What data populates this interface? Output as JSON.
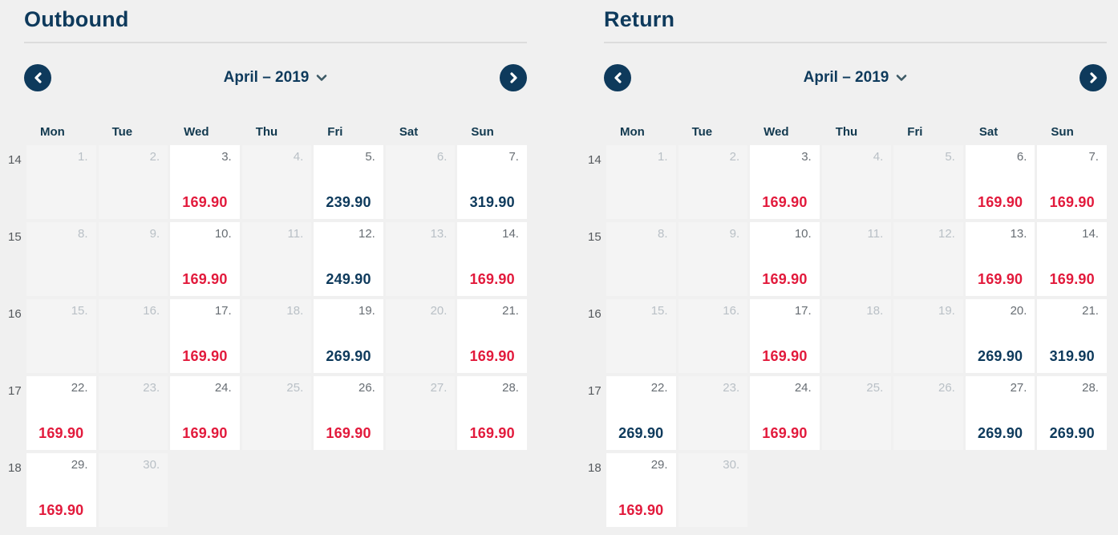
{
  "colors": {
    "page_background": "#f0f0f0",
    "empty_cell_background": "#f4f4f4",
    "priced_cell_background": "#ffffff",
    "navy": "#0e3a5c",
    "price_low_red": "#e21a3c",
    "price_regular_navy": "#0e3a5c"
  },
  "calendars": [
    {
      "id": "outbound",
      "title": "Outbound",
      "month_label": "April – 2019",
      "weekdays": [
        "Mon",
        "Tue",
        "Wed",
        "Thu",
        "Fri",
        "Sat",
        "Sun"
      ],
      "weeks": [
        {
          "week_number": "14",
          "days": [
            {
              "day": "1."
            },
            {
              "day": "2."
            },
            {
              "day": "3.",
              "price": "169.90",
              "tone": "low"
            },
            {
              "day": "4."
            },
            {
              "day": "5.",
              "price": "239.90",
              "tone": "regular"
            },
            {
              "day": "6."
            },
            {
              "day": "7.",
              "price": "319.90",
              "tone": "regular"
            }
          ]
        },
        {
          "week_number": "15",
          "days": [
            {
              "day": "8."
            },
            {
              "day": "9."
            },
            {
              "day": "10.",
              "price": "169.90",
              "tone": "low"
            },
            {
              "day": "11."
            },
            {
              "day": "12.",
              "price": "249.90",
              "tone": "regular"
            },
            {
              "day": "13."
            },
            {
              "day": "14.",
              "price": "169.90",
              "tone": "low"
            }
          ]
        },
        {
          "week_number": "16",
          "days": [
            {
              "day": "15."
            },
            {
              "day": "16."
            },
            {
              "day": "17.",
              "price": "169.90",
              "tone": "low"
            },
            {
              "day": "18."
            },
            {
              "day": "19.",
              "price": "269.90",
              "tone": "regular"
            },
            {
              "day": "20."
            },
            {
              "day": "21.",
              "price": "169.90",
              "tone": "low"
            }
          ]
        },
        {
          "week_number": "17",
          "days": [
            {
              "day": "22.",
              "price": "169.90",
              "tone": "low"
            },
            {
              "day": "23."
            },
            {
              "day": "24.",
              "price": "169.90",
              "tone": "low"
            },
            {
              "day": "25."
            },
            {
              "day": "26.",
              "price": "169.90",
              "tone": "low"
            },
            {
              "day": "27."
            },
            {
              "day": "28.",
              "price": "169.90",
              "tone": "low"
            }
          ]
        },
        {
          "week_number": "18",
          "days": [
            {
              "day": "29.",
              "price": "169.90",
              "tone": "low"
            },
            {
              "day": "30."
            },
            null,
            null,
            null,
            null,
            null
          ]
        }
      ]
    },
    {
      "id": "return",
      "title": "Return",
      "month_label": "April – 2019",
      "weekdays": [
        "Mon",
        "Tue",
        "Wed",
        "Thu",
        "Fri",
        "Sat",
        "Sun"
      ],
      "weeks": [
        {
          "week_number": "14",
          "days": [
            {
              "day": "1."
            },
            {
              "day": "2."
            },
            {
              "day": "3.",
              "price": "169.90",
              "tone": "low"
            },
            {
              "day": "4."
            },
            {
              "day": "5."
            },
            {
              "day": "6.",
              "price": "169.90",
              "tone": "low"
            },
            {
              "day": "7.",
              "price": "169.90",
              "tone": "low"
            }
          ]
        },
        {
          "week_number": "15",
          "days": [
            {
              "day": "8."
            },
            {
              "day": "9."
            },
            {
              "day": "10.",
              "price": "169.90",
              "tone": "low"
            },
            {
              "day": "11."
            },
            {
              "day": "12."
            },
            {
              "day": "13.",
              "price": "169.90",
              "tone": "low"
            },
            {
              "day": "14.",
              "price": "169.90",
              "tone": "low"
            }
          ]
        },
        {
          "week_number": "16",
          "days": [
            {
              "day": "15."
            },
            {
              "day": "16."
            },
            {
              "day": "17.",
              "price": "169.90",
              "tone": "low"
            },
            {
              "day": "18."
            },
            {
              "day": "19."
            },
            {
              "day": "20.",
              "price": "269.90",
              "tone": "regular"
            },
            {
              "day": "21.",
              "price": "319.90",
              "tone": "regular"
            }
          ]
        },
        {
          "week_number": "17",
          "days": [
            {
              "day": "22.",
              "price": "269.90",
              "tone": "regular"
            },
            {
              "day": "23."
            },
            {
              "day": "24.",
              "price": "169.90",
              "tone": "low"
            },
            {
              "day": "25."
            },
            {
              "day": "26."
            },
            {
              "day": "27.",
              "price": "269.90",
              "tone": "regular"
            },
            {
              "day": "28.",
              "price": "269.90",
              "tone": "regular"
            }
          ]
        },
        {
          "week_number": "18",
          "days": [
            {
              "day": "29.",
              "price": "169.90",
              "tone": "low"
            },
            {
              "day": "30."
            },
            null,
            null,
            null,
            null,
            null
          ]
        }
      ]
    }
  ]
}
